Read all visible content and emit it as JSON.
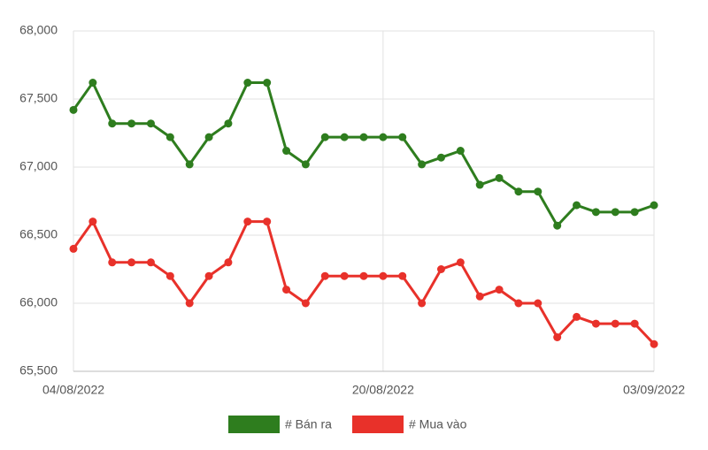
{
  "chart_data": {
    "type": "line",
    "categories": [
      "04/08/2022",
      null,
      null,
      null,
      null,
      null,
      null,
      null,
      null,
      null,
      null,
      null,
      null,
      null,
      null,
      null,
      "20/08/2022",
      null,
      null,
      null,
      null,
      null,
      null,
      null,
      null,
      null,
      null,
      null,
      null,
      null,
      "03/09/2022"
    ],
    "series": [
      {
        "name": "# Bán ra",
        "color": "#2e7d1e",
        "values": [
          67420,
          67620,
          67320,
          67320,
          67320,
          67220,
          67020,
          67220,
          67320,
          67620,
          67620,
          67120,
          67020,
          67220,
          67220,
          67220,
          67220,
          67220,
          67020,
          67070,
          67120,
          66870,
          66920,
          66820,
          66820,
          66570,
          66720,
          66670,
          66670,
          66670,
          66720
        ]
      },
      {
        "name": "# Mua vào",
        "color": "#e8312a",
        "values": [
          66400,
          66600,
          66300,
          66300,
          66300,
          66200,
          66000,
          66200,
          66300,
          66600,
          66600,
          66100,
          66000,
          66200,
          66200,
          66200,
          66200,
          66200,
          66000,
          66250,
          66300,
          66050,
          66100,
          66000,
          66000,
          65750,
          65900,
          65850,
          65850,
          65850,
          65700
        ]
      }
    ],
    "ylim": [
      65500,
      68000
    ],
    "yticks": [
      {
        "value": 65500,
        "label": "65,500"
      },
      {
        "value": 66000,
        "label": "66,000"
      },
      {
        "value": 66500,
        "label": "66,500"
      },
      {
        "value": 67000,
        "label": "67,000"
      },
      {
        "value": 67500,
        "label": "67,500"
      },
      {
        "value": 68000,
        "label": "68,000"
      }
    ],
    "grid": true,
    "legend": "bottom"
  }
}
